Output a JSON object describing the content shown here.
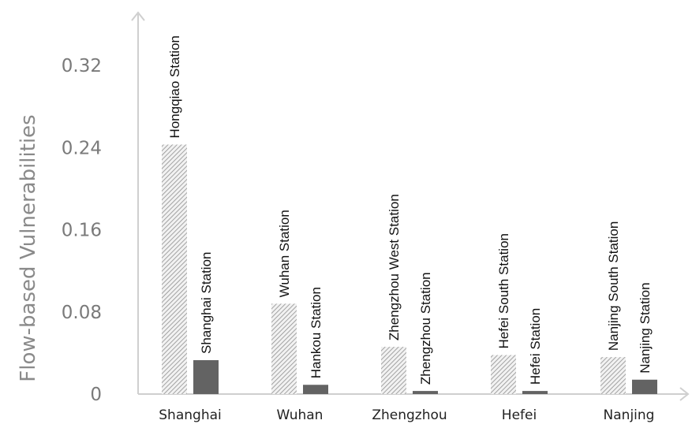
{
  "chart_data": {
    "type": "bar",
    "title": "",
    "xlabel": "",
    "ylabel": "Flow-based Vulnerabilities",
    "ylim": [
      0,
      0.37
    ],
    "yticks": [
      "0",
      "0.08",
      "0.16",
      "0.24",
      "0.32"
    ],
    "ytick_values": [
      0,
      0.08,
      0.16,
      0.24,
      0.32
    ],
    "grid": false,
    "categories": [
      "Shanghai",
      "Wuhan",
      "Zhengzhou",
      "Hefei",
      "Nanjing"
    ],
    "series": [
      {
        "pattern": "hatched",
        "color": "#9a9a9a",
        "values": [
          0.243,
          0.088,
          0.046,
          0.038,
          0.036
        ],
        "labels": [
          "Hongqiao Station",
          "Wuhan Station",
          "Zhengzhou West Station",
          "Hefei South Station",
          "Nanjing South Station"
        ]
      },
      {
        "pattern": "solid",
        "color": "#636363",
        "values": [
          0.033,
          0.009,
          0.003,
          0.003,
          0.014
        ],
        "labels": [
          "Shanghai Station",
          "Hankou Station",
          "Zhengzhou Station",
          "Hefei Station",
          "Nanjing Station"
        ]
      }
    ]
  }
}
